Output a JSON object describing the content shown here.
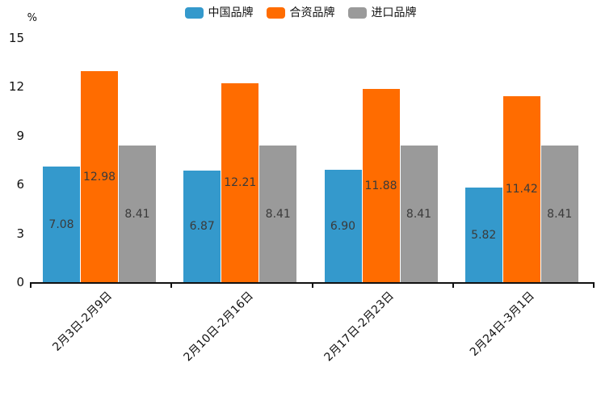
{
  "chart_data": {
    "type": "bar",
    "title": "",
    "ylabel": "%",
    "xlabel": "",
    "categories": [
      "2月3日-2月9日",
      "2月10日-2月16日",
      "2月17日-2月23日",
      "2月24日-3月1日"
    ],
    "series": [
      {
        "name": "中国品牌",
        "color": "#3499CC",
        "values": [
          7.08,
          6.87,
          6.9,
          5.82
        ]
      },
      {
        "name": "合资品牌",
        "color": "#FF6C00",
        "values": [
          12.98,
          12.21,
          11.88,
          11.42
        ]
      },
      {
        "name": "进口品牌",
        "color": "#9A9A9A",
        "values": [
          8.41,
          8.41,
          8.41,
          8.41
        ]
      }
    ],
    "value_label_format": "2dp",
    "value_labels_shown": [
      "7.08",
      "6.87",
      "6.90",
      "5.82",
      "12.98",
      "12.21",
      "11.88",
      "11.42",
      "8.41",
      "8.41",
      "8.41",
      "8.41"
    ],
    "yticks": [
      0,
      3,
      6,
      9,
      12,
      15
    ],
    "ylim": [
      0,
      15
    ],
    "grid": false,
    "legend_position": "top-center",
    "value_label_position": "inside-center",
    "colors": {
      "axis": "#111111",
      "tick_text": "#111111",
      "value_text": "#3a3a3a",
      "background": "#ffffff"
    }
  }
}
